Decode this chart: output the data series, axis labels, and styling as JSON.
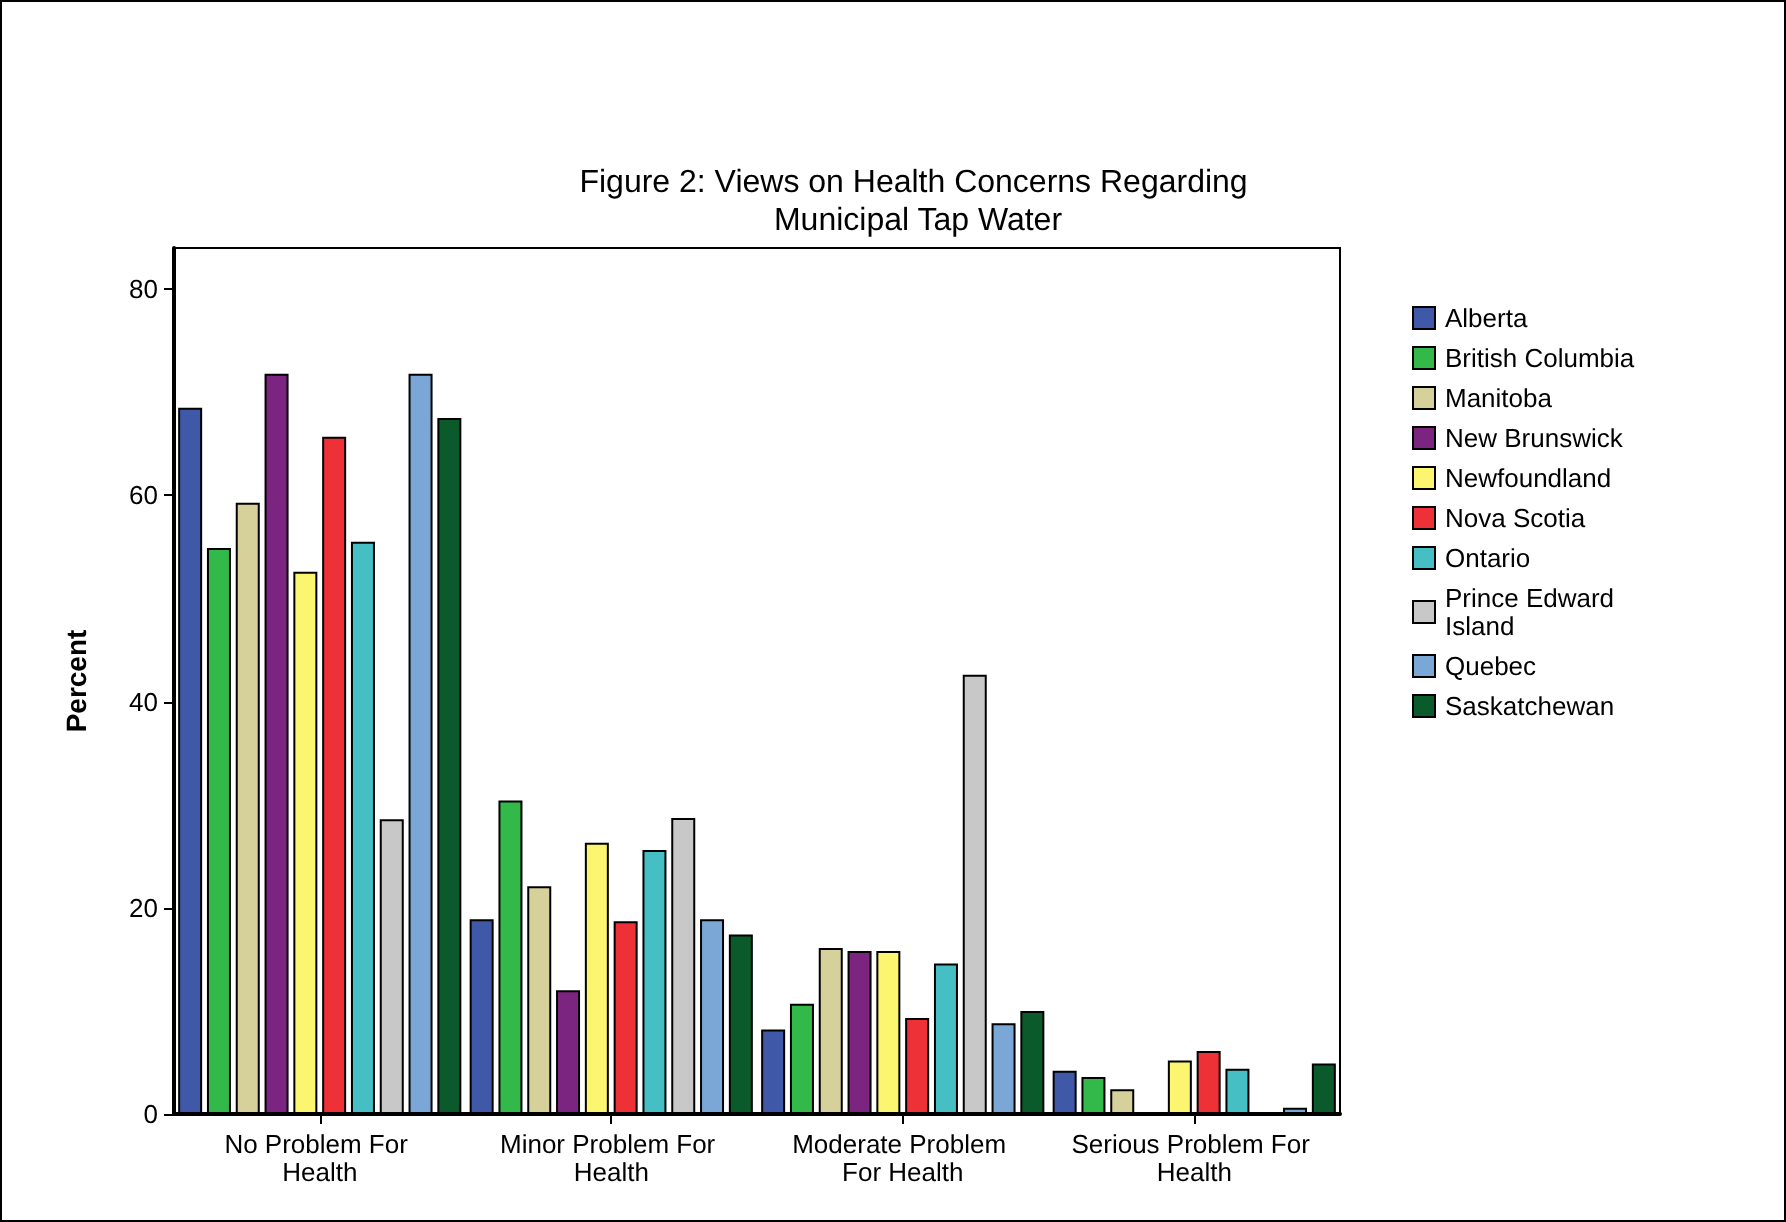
{
  "chart_data": {
    "type": "bar",
    "title": "Figure 2: Views on Health Concerns Regarding Municipal Tap Water",
    "ylabel": "Percent",
    "categories": [
      "No Problem For Health",
      "Minor Problem For Health",
      "Moderate Problem For Health",
      "Serious Problem For Health"
    ],
    "series": [
      {
        "name": "Alberta",
        "color": "#3f58a8",
        "values": [
          68.5,
          18.9,
          8.2,
          4.2
        ]
      },
      {
        "name": "British Columbia",
        "color": "#33b84a",
        "values": [
          54.9,
          30.4,
          10.7,
          3.6
        ]
      },
      {
        "name": "Manitoba",
        "color": "#d6d09a",
        "values": [
          59.3,
          22.1,
          16.1,
          2.4
        ]
      },
      {
        "name": "New Brunswick",
        "color": "#7b2580",
        "values": [
          71.8,
          12.0,
          15.8,
          null
        ]
      },
      {
        "name": "Newfoundland",
        "color": "#fcf56f",
        "values": [
          52.6,
          26.3,
          15.8,
          5.2
        ]
      },
      {
        "name": "Nova Scotia",
        "color": "#ee3136",
        "values": [
          65.7,
          18.7,
          9.3,
          6.1
        ]
      },
      {
        "name": "Ontario",
        "color": "#45bfc4",
        "values": [
          55.5,
          25.6,
          14.6,
          4.4
        ]
      },
      {
        "name": "Prince Edward Island",
        "color": "#c8c8c8",
        "values": [
          28.6,
          28.7,
          42.6,
          null
        ]
      },
      {
        "name": "Quebec",
        "color": "#7ba7d6",
        "values": [
          71.8,
          18.9,
          8.8,
          0.6
        ]
      },
      {
        "name": "Saskatchewan",
        "color": "#0b5a2b",
        "values": [
          67.5,
          17.4,
          10.0,
          4.9
        ]
      }
    ],
    "ylim": [
      0,
      84
    ],
    "yticks": [
      0,
      20,
      40,
      60,
      80
    ],
    "grid": false,
    "legend": "right"
  }
}
